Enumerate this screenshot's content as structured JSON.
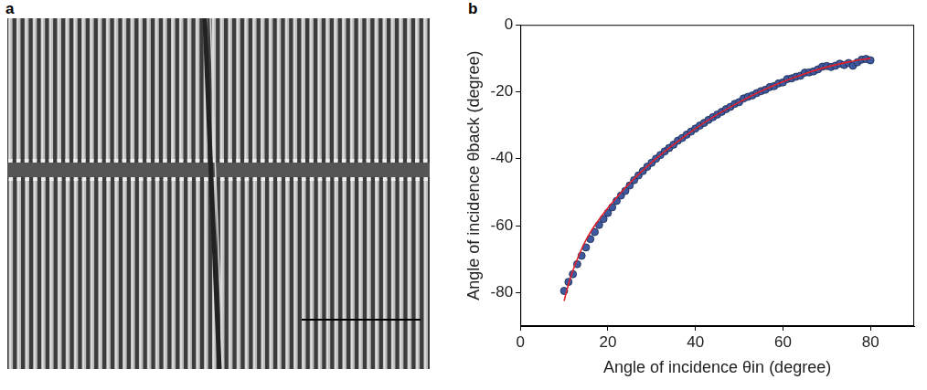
{
  "panel_a": {
    "label": "a"
  },
  "chart_data": {
    "type": "scatter",
    "panel_label": "b",
    "x_label": "Angle of incidence θin (degree)",
    "y_label": "Angle of incidence θback (degree)",
    "xlim": [
      0,
      90
    ],
    "xticks": [
      0,
      20,
      40,
      60,
      80
    ],
    "ylim": [
      -90,
      0
    ],
    "yticks": [
      -80,
      -60,
      -40,
      -20,
      0
    ],
    "grid": false,
    "series": [
      {
        "type": "scatter",
        "color": "#3d5a9e",
        "marker": "circle",
        "x": [
          10,
          11,
          12,
          13,
          14,
          15,
          16,
          17,
          18,
          19,
          20,
          21,
          22,
          23,
          24,
          25,
          26,
          27,
          28,
          29,
          30,
          31,
          32,
          33,
          34,
          35,
          36,
          37,
          38,
          39,
          40,
          41,
          42,
          43,
          44,
          45,
          46,
          47,
          48,
          49,
          50,
          51,
          52,
          53,
          54,
          55,
          56,
          57,
          58,
          59,
          60,
          61,
          62,
          63,
          64,
          65,
          66,
          67,
          68,
          69,
          70,
          71,
          72,
          73,
          74,
          75,
          76,
          77,
          78,
          79,
          80
        ],
        "values": [
          -79.5,
          -76.8,
          -74.5,
          -71.5,
          -69.0,
          -66.5,
          -64.0,
          -61.9,
          -59.8,
          -58.0,
          -56.2,
          -54.5,
          -52.6,
          -51.0,
          -49.6,
          -48.0,
          -46.4,
          -45.0,
          -43.7,
          -42.4,
          -41.2,
          -40.0,
          -38.9,
          -37.8,
          -36.8,
          -35.8,
          -34.6,
          -33.8,
          -32.8,
          -31.9,
          -31.0,
          -30.1,
          -29.3,
          -28.4,
          -27.6,
          -26.8,
          -26.0,
          -25.2,
          -24.5,
          -23.6,
          -23.1,
          -22.0,
          -21.5,
          -21.1,
          -20.4,
          -19.8,
          -19.4,
          -18.6,
          -18.3,
          -17.5,
          -17.2,
          -16.2,
          -16.0,
          -15.5,
          -15.2,
          -14.3,
          -14.2,
          -13.9,
          -13.3,
          -12.5,
          -12.3,
          -12.6,
          -12.2,
          -11.6,
          -12.0,
          -11.4,
          -12.2,
          -11.2,
          -10.4,
          -10.2,
          -10.6
        ]
      },
      {
        "type": "line",
        "color": "#e3202a",
        "line_style": "solid",
        "x": [
          10,
          11,
          12,
          13,
          14,
          15,
          17,
          20,
          25,
          30,
          35,
          40,
          45,
          50,
          55,
          60,
          65,
          70,
          75,
          80
        ],
        "values": [
          -82.5,
          -77.5,
          -73.5,
          -70.0,
          -67.0,
          -64.3,
          -60.0,
          -54.7,
          -47.3,
          -41.1,
          -35.8,
          -31.0,
          -26.8,
          -23.1,
          -19.8,
          -17.0,
          -14.6,
          -12.6,
          -11.1,
          -10.0
        ]
      }
    ]
  }
}
